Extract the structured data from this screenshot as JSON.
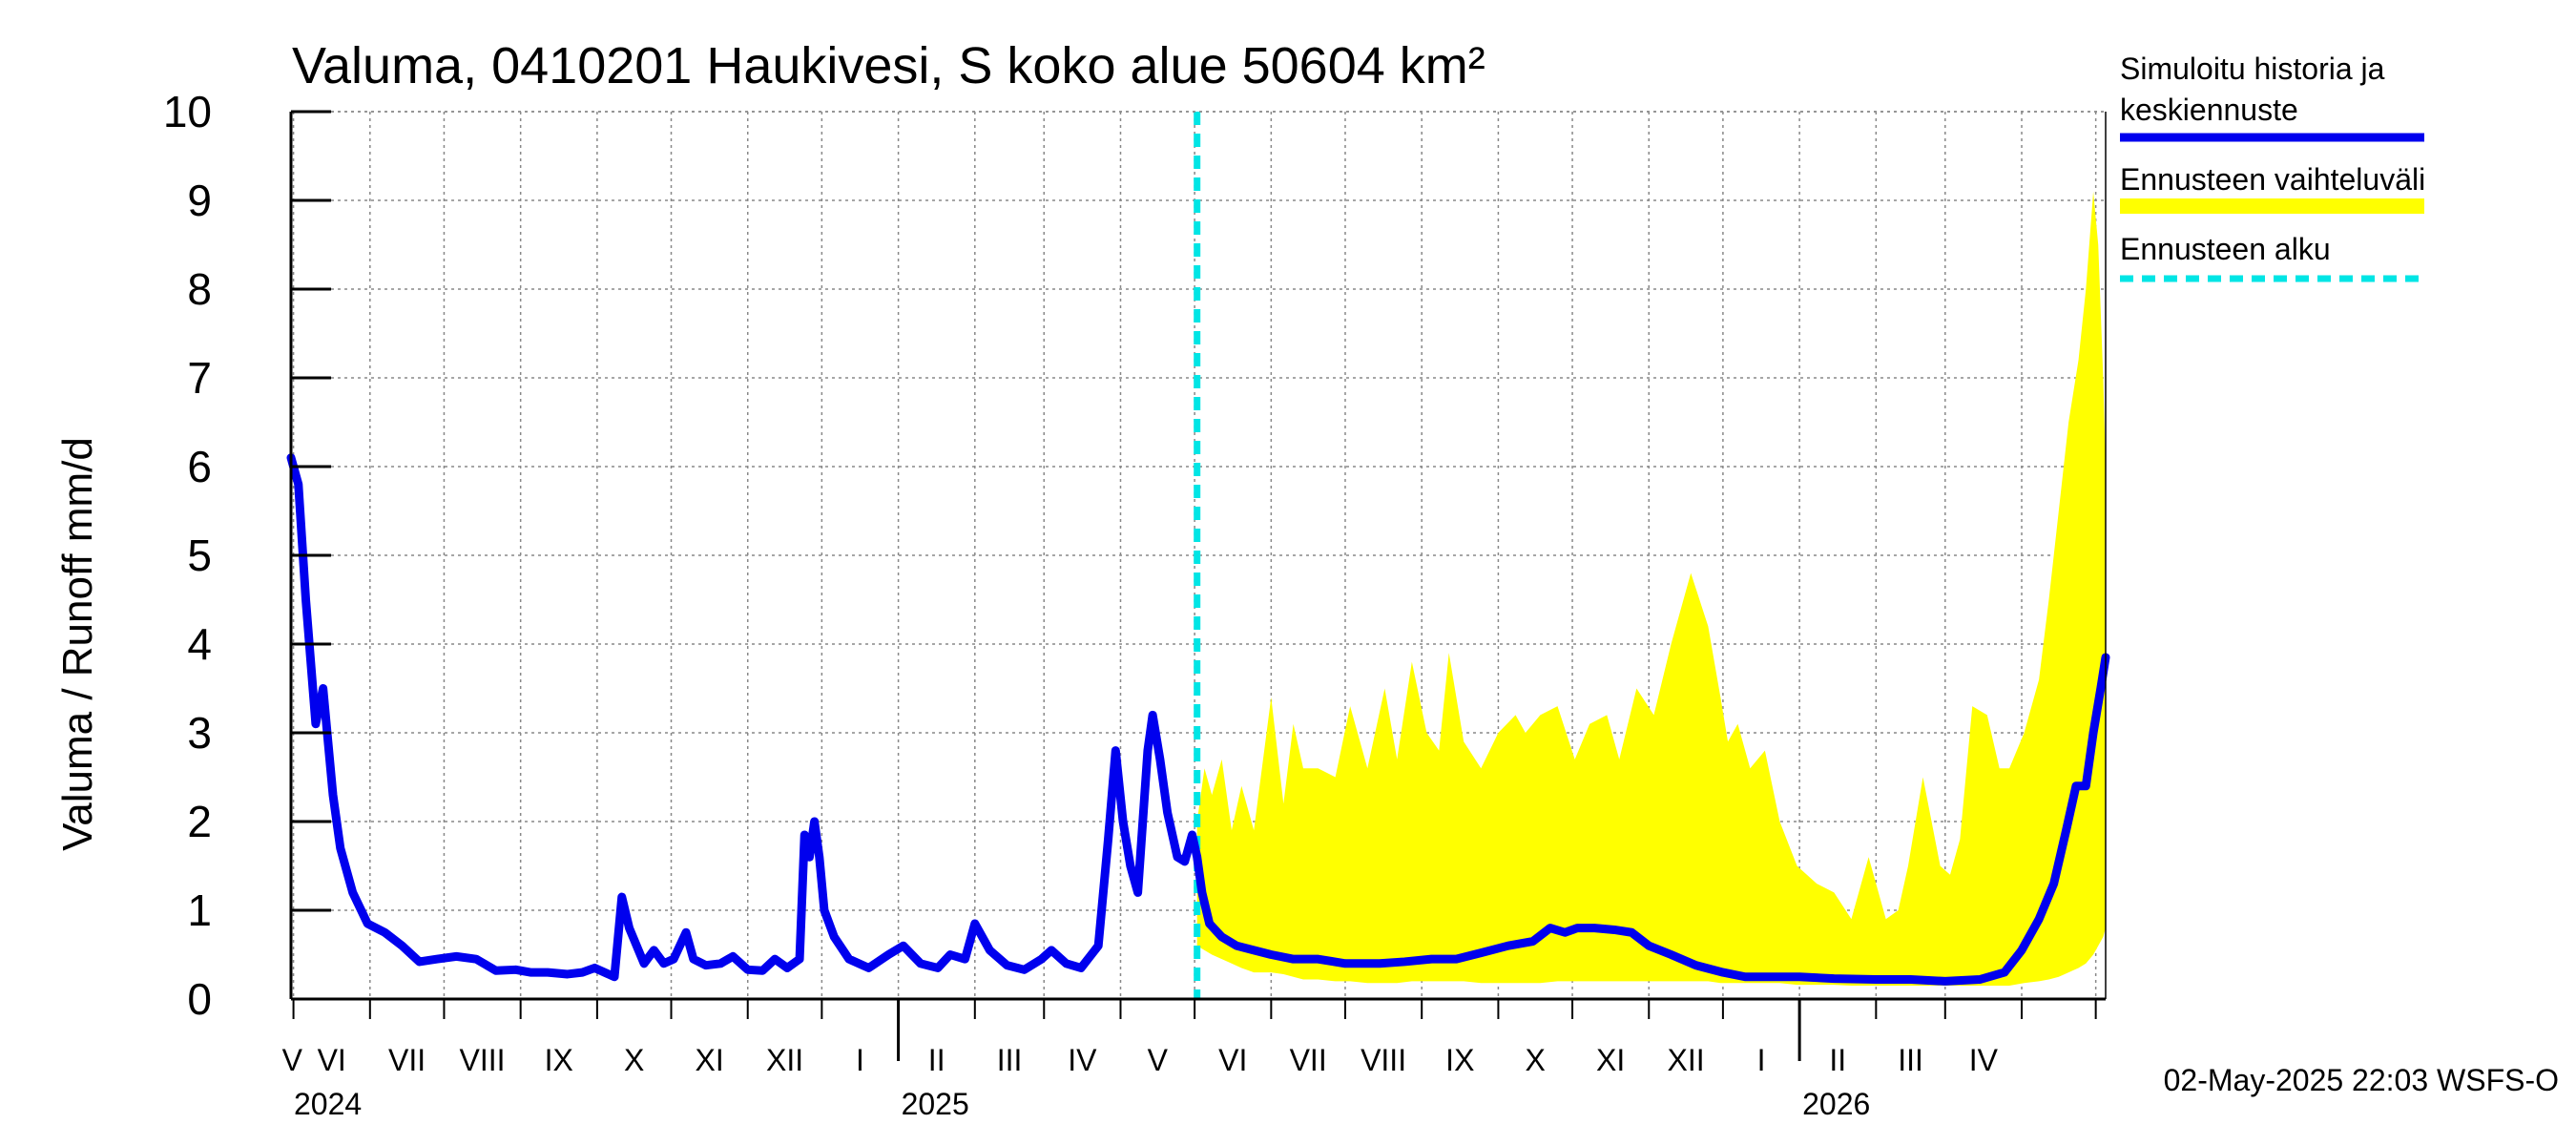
{
  "chart_data": {
    "type": "line",
    "title": "Valuma, 0410201 Haukivesi, S koko alue 50604 km²",
    "ylabel": "Valuma / Runoff    mm/d",
    "ylim": [
      0,
      10
    ],
    "yticks": [
      "0",
      "1",
      "2",
      "3",
      "4",
      "5",
      "6",
      "7",
      "8",
      "9",
      "10"
    ],
    "grid": true,
    "legend_position": "right",
    "legend": [
      {
        "label_line1": "Simuloitu historia ja",
        "label_line2": "keskiennuste",
        "color": "#0000ee"
      },
      {
        "label_line1": "Ennusteen vaihteluväli",
        "label_line2": "",
        "color": "#ffff00"
      },
      {
        "label_line1": "Ennusteen alku",
        "label_line2": "",
        "color": "#00e5e5"
      }
    ],
    "month_labels": [
      "V",
      "VI",
      "VII",
      "VIII",
      "IX",
      "X",
      "XI",
      "XII",
      "I",
      "II",
      "III",
      "IV",
      "V",
      "VI",
      "VII",
      "VIII",
      "IX",
      "X",
      "XI",
      "XII",
      "I",
      "II",
      "III",
      "IV"
    ],
    "year_labels": [
      "2024",
      "2025",
      "2026"
    ],
    "x_start": "2024-04-30",
    "x_end": "2026-05-05",
    "forecast_start": "2025-05-02",
    "footer": "02-May-2025 22:03 WSFS-O",
    "series": [
      {
        "name": "Simuloitu historia ja keskiennuste",
        "color": "#0000ee",
        "x": [
          "2024-04-30",
          "2024-05-03",
          "2024-05-06",
          "2024-05-10",
          "2024-05-13",
          "2024-05-15",
          "2024-05-17",
          "2024-05-20",
          "2024-05-25",
          "2024-05-31",
          "2024-06-07",
          "2024-06-14",
          "2024-06-21",
          "2024-06-28",
          "2024-07-06",
          "2024-07-14",
          "2024-07-22",
          "2024-07-30",
          "2024-08-05",
          "2024-08-12",
          "2024-08-20",
          "2024-08-26",
          "2024-08-31",
          "2024-09-04",
          "2024-09-08",
          "2024-09-11",
          "2024-09-14",
          "2024-09-20",
          "2024-09-24",
          "2024-09-28",
          "2024-10-02",
          "2024-10-07",
          "2024-10-10",
          "2024-10-15",
          "2024-10-21",
          "2024-10-26",
          "2024-11-01",
          "2024-11-07",
          "2024-11-12",
          "2024-11-17",
          "2024-11-22",
          "2024-11-24",
          "2024-11-26",
          "2024-11-28",
          "2024-11-30",
          "2024-12-02",
          "2024-12-06",
          "2024-12-12",
          "2024-12-20",
          "2024-12-28",
          "2025-01-03",
          "2025-01-10",
          "2025-01-17",
          "2025-01-22",
          "2025-01-28",
          "2025-02-01",
          "2025-02-07",
          "2025-02-14",
          "2025-02-21",
          "2025-02-28",
          "2025-03-04",
          "2025-03-10",
          "2025-03-16",
          "2025-03-23",
          "2025-03-27",
          "2025-03-30",
          "2025-04-02",
          "2025-04-05",
          "2025-04-08",
          "2025-04-12",
          "2025-04-14",
          "2025-04-17",
          "2025-04-20",
          "2025-04-24",
          "2025-04-27",
          "2025-04-30",
          "2025-05-02",
          "2025-05-04",
          "2025-05-07",
          "2025-05-12",
          "2025-05-18",
          "2025-05-25",
          "2025-06-01",
          "2025-06-10",
          "2025-06-20",
          "2025-07-01",
          "2025-07-15",
          "2025-07-25",
          "2025-08-05",
          "2025-08-15",
          "2025-08-25",
          "2025-09-05",
          "2025-09-15",
          "2025-09-22",
          "2025-09-28",
          "2025-10-03",
          "2025-10-10",
          "2025-10-18",
          "2025-10-25",
          "2025-11-01",
          "2025-11-10",
          "2025-11-20",
          "2025-12-01",
          "2025-12-10",
          "2025-12-20",
          "2026-01-01",
          "2026-01-15",
          "2026-02-01",
          "2026-02-15",
          "2026-03-01",
          "2026-03-15",
          "2026-03-25",
          "2026-04-01",
          "2026-04-08",
          "2026-04-14",
          "2026-04-19",
          "2026-04-23",
          "2026-04-27",
          "2026-04-30",
          "2026-05-03",
          "2026-05-05"
        ],
        "y": [
          6.1,
          5.8,
          4.5,
          3.1,
          3.5,
          2.9,
          2.3,
          1.7,
          1.2,
          0.85,
          0.75,
          0.6,
          0.42,
          0.45,
          0.48,
          0.45,
          0.32,
          0.33,
          0.3,
          0.3,
          0.28,
          0.3,
          0.35,
          0.3,
          0.25,
          1.15,
          0.8,
          0.4,
          0.55,
          0.4,
          0.45,
          0.75,
          0.45,
          0.38,
          0.4,
          0.48,
          0.33,
          0.32,
          0.45,
          0.35,
          0.45,
          1.85,
          1.6,
          2.0,
          1.6,
          1.0,
          0.7,
          0.45,
          0.35,
          0.5,
          0.6,
          0.4,
          0.35,
          0.5,
          0.45,
          0.85,
          0.55,
          0.38,
          0.33,
          0.45,
          0.55,
          0.4,
          0.35,
          0.6,
          1.8,
          2.8,
          2.0,
          1.5,
          1.2,
          2.8,
          3.2,
          2.7,
          2.1,
          1.6,
          1.55,
          1.85,
          1.6,
          1.2,
          0.85,
          0.7,
          0.6,
          0.55,
          0.5,
          0.45,
          0.45,
          0.4,
          0.4,
          0.42,
          0.45,
          0.45,
          0.52,
          0.6,
          0.65,
          0.8,
          0.75,
          0.8,
          0.8,
          0.78,
          0.75,
          0.6,
          0.5,
          0.38,
          0.3,
          0.25,
          0.25,
          0.25,
          0.23,
          0.22,
          0.22,
          0.2,
          0.22,
          0.3,
          0.55,
          0.9,
          1.3,
          1.9,
          2.4,
          2.4,
          3.0,
          3.5,
          3.85
        ]
      },
      {
        "name": "Ennusteen vaihteluväli",
        "color": "#ffff00",
        "x": [
          "2025-05-02",
          "2025-05-05",
          "2025-05-08",
          "2025-05-12",
          "2025-05-16",
          "2025-05-20",
          "2025-05-25",
          "2025-06-01",
          "2025-06-06",
          "2025-06-10",
          "2025-06-14",
          "2025-06-20",
          "2025-06-27",
          "2025-07-03",
          "2025-07-10",
          "2025-07-17",
          "2025-07-22",
          "2025-07-28",
          "2025-08-03",
          "2025-08-08",
          "2025-08-12",
          "2025-08-18",
          "2025-08-25",
          "2025-09-01",
          "2025-09-08",
          "2025-09-12",
          "2025-09-18",
          "2025-09-25",
          "2025-10-02",
          "2025-10-08",
          "2025-10-15",
          "2025-10-20",
          "2025-10-27",
          "2025-11-03",
          "2025-11-10",
          "2025-11-18",
          "2025-11-25",
          "2025-11-30",
          "2025-12-03",
          "2025-12-07",
          "2025-12-12",
          "2025-12-18",
          "2025-12-24",
          "2025-12-31",
          "2026-01-08",
          "2026-01-15",
          "2026-01-22",
          "2026-01-29",
          "2026-02-05",
          "2026-02-10",
          "2026-02-14",
          "2026-02-20",
          "2026-02-27",
          "2026-03-03",
          "2026-03-07",
          "2026-03-12",
          "2026-03-18",
          "2026-03-23",
          "2026-03-27",
          "2026-04-02",
          "2026-04-08",
          "2026-04-12",
          "2026-04-16",
          "2026-04-20",
          "2026-04-24",
          "2026-04-27",
          "2026-04-30",
          "2026-05-02",
          "2026-05-04",
          "2026-05-05"
        ],
        "y_high": [
          2.0,
          2.6,
          2.3,
          2.7,
          1.9,
          2.4,
          1.9,
          3.4,
          2.2,
          3.1,
          2.6,
          2.6,
          2.5,
          3.3,
          2.6,
          3.5,
          2.7,
          3.8,
          3.0,
          2.8,
          3.9,
          2.9,
          2.6,
          3.0,
          3.2,
          3.0,
          3.2,
          3.3,
          2.7,
          3.1,
          3.2,
          2.7,
          3.5,
          3.2,
          4.0,
          4.8,
          4.2,
          3.4,
          2.9,
          3.1,
          2.6,
          2.8,
          2.0,
          1.5,
          1.3,
          1.2,
          0.9,
          1.6,
          0.9,
          1.0,
          1.5,
          2.5,
          1.5,
          1.4,
          1.8,
          3.3,
          3.2,
          2.6,
          2.6,
          3.0,
          3.6,
          4.5,
          5.5,
          6.5,
          7.2,
          8.0,
          9.1,
          8.5,
          7.0,
          6.0
        ],
        "y_low": [
          0.6,
          0.55,
          0.5,
          0.45,
          0.4,
          0.35,
          0.3,
          0.3,
          0.28,
          0.25,
          0.22,
          0.22,
          0.2,
          0.2,
          0.18,
          0.18,
          0.18,
          0.2,
          0.2,
          0.2,
          0.2,
          0.2,
          0.18,
          0.18,
          0.18,
          0.18,
          0.18,
          0.2,
          0.2,
          0.2,
          0.2,
          0.2,
          0.2,
          0.2,
          0.2,
          0.2,
          0.2,
          0.18,
          0.18,
          0.18,
          0.18,
          0.18,
          0.18,
          0.16,
          0.16,
          0.16,
          0.15,
          0.15,
          0.15,
          0.15,
          0.15,
          0.15,
          0.15,
          0.15,
          0.15,
          0.15,
          0.15,
          0.15,
          0.15,
          0.18,
          0.2,
          0.22,
          0.25,
          0.3,
          0.35,
          0.4,
          0.5,
          0.6,
          0.7,
          0.8
        ]
      }
    ]
  }
}
